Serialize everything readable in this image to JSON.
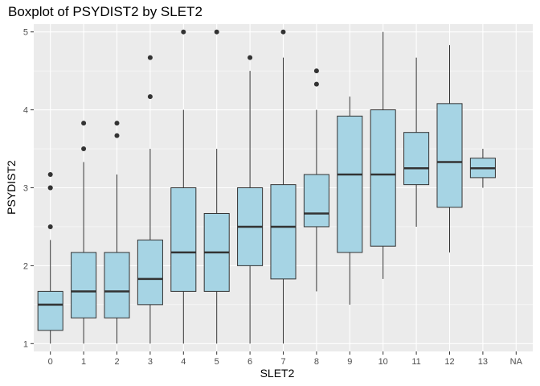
{
  "chart_data": {
    "type": "boxplot",
    "title": "Boxplot of PSYDIST2 by SLET2",
    "xlabel": "SLET2",
    "ylabel": "PSYDIST2",
    "ylim": [
      0.9,
      5.1
    ],
    "y_ticks": [
      1,
      2,
      3,
      4,
      5
    ],
    "categories": [
      "0",
      "1",
      "2",
      "3",
      "4",
      "5",
      "6",
      "7",
      "8",
      "9",
      "10",
      "11",
      "12",
      "13",
      "NA"
    ],
    "grid": true,
    "legend": "none",
    "colors": {
      "panel": "#ebebeb",
      "grid": "#ffffff",
      "box_fill": "#a6d4e4",
      "box_line": "#333333"
    },
    "boxes": [
      {
        "category": "0",
        "whisker_low": 1.0,
        "q1": 1.17,
        "median": 1.5,
        "q3": 1.67,
        "whisker_high": 2.33,
        "outliers": [
          2.5,
          3.0,
          3.0,
          3.17
        ]
      },
      {
        "category": "1",
        "whisker_low": 1.0,
        "q1": 1.33,
        "median": 1.67,
        "q3": 2.17,
        "whisker_high": 3.33,
        "outliers": [
          3.5,
          3.83
        ]
      },
      {
        "category": "2",
        "whisker_low": 1.0,
        "q1": 1.33,
        "median": 1.67,
        "q3": 2.17,
        "whisker_high": 3.17,
        "outliers": [
          3.67,
          3.83
        ]
      },
      {
        "category": "3",
        "whisker_low": 1.0,
        "q1": 1.5,
        "median": 1.83,
        "q3": 2.33,
        "whisker_high": 3.5,
        "outliers": [
          4.17,
          4.67
        ]
      },
      {
        "category": "4",
        "whisker_low": 1.0,
        "q1": 1.67,
        "median": 2.17,
        "q3": 3.0,
        "whisker_high": 4.0,
        "outliers": [
          5.0
        ]
      },
      {
        "category": "5",
        "whisker_low": 1.0,
        "q1": 1.67,
        "median": 2.17,
        "q3": 2.67,
        "whisker_high": 3.5,
        "outliers": [
          5.0
        ]
      },
      {
        "category": "6",
        "whisker_low": 1.0,
        "q1": 2.0,
        "median": 2.5,
        "q3": 3.0,
        "whisker_high": 4.5,
        "outliers": [
          4.67
        ]
      },
      {
        "category": "7",
        "whisker_low": 1.0,
        "q1": 1.83,
        "median": 2.5,
        "q3": 3.04,
        "whisker_high": 4.67,
        "outliers": [
          5.0
        ]
      },
      {
        "category": "8",
        "whisker_low": 1.67,
        "q1": 2.5,
        "median": 2.67,
        "q3": 3.17,
        "whisker_high": 4.0,
        "outliers": [
          4.33,
          4.5
        ]
      },
      {
        "category": "9",
        "whisker_low": 1.5,
        "q1": 2.17,
        "median": 3.17,
        "q3": 3.92,
        "whisker_high": 4.17,
        "outliers": []
      },
      {
        "category": "10",
        "whisker_low": 1.83,
        "q1": 2.25,
        "median": 3.17,
        "q3": 4.0,
        "whisker_high": 5.0,
        "outliers": []
      },
      {
        "category": "11",
        "whisker_low": 2.5,
        "q1": 3.04,
        "median": 3.25,
        "q3": 3.71,
        "whisker_high": 4.67,
        "outliers": []
      },
      {
        "category": "12",
        "whisker_low": 2.17,
        "q1": 2.75,
        "median": 3.33,
        "q3": 4.08,
        "whisker_high": 4.83,
        "outliers": []
      },
      {
        "category": "13",
        "whisker_low": 3.0,
        "q1": 3.13,
        "median": 3.25,
        "q3": 3.38,
        "whisker_high": 3.5,
        "outliers": []
      },
      {
        "category": "NA",
        "whisker_low": null,
        "q1": null,
        "median": null,
        "q3": null,
        "whisker_high": null,
        "outliers": []
      }
    ]
  }
}
